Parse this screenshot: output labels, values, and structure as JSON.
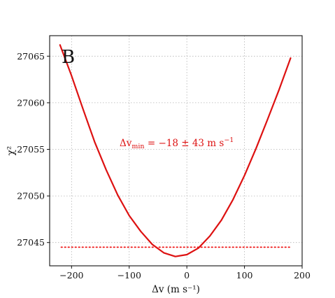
{
  "chart_data": {
    "type": "line",
    "panel_label": "B",
    "xlabel": "Δv (m s⁻¹)",
    "ylabel": "χ²",
    "xlim": [
      -238,
      200
    ],
    "ylim": [
      27042.5,
      27067.2
    ],
    "x_ticks": [
      -200,
      -100,
      0,
      100,
      200
    ],
    "y_ticks": [
      27045,
      27050,
      27055,
      27060,
      27065
    ],
    "x_tick_labels": [
      "−200",
      "−100",
      "0",
      "100",
      "200"
    ],
    "y_tick_labels": [
      "27045",
      "27050",
      "27055",
      "27060",
      "27065"
    ],
    "grid": true,
    "series": [
      {
        "style": "solid",
        "color": "#dd1111",
        "x": [
          -220,
          -200,
          -180,
          -160,
          -140,
          -120,
          -100,
          -80,
          -60,
          -40,
          -20,
          0,
          20,
          40,
          60,
          80,
          100,
          120,
          140,
          160,
          180
        ],
        "y": [
          27066.2,
          27062.9,
          27059.3,
          27055.8,
          27052.8,
          27050.1,
          27047.9,
          27046.2,
          27044.8,
          27043.9,
          27043.5,
          27043.7,
          27044.4,
          27045.7,
          27047.4,
          27049.6,
          27052.2,
          27055.1,
          27058.2,
          27061.4,
          27064.8
        ]
      },
      {
        "style": "dotted",
        "color": "#ee1111",
        "x": [
          -218,
          180
        ],
        "y": [
          27044.5,
          27044.5
        ]
      }
    ],
    "annotation": {
      "text": "Δvmin = −18 ± 43 m s−1",
      "base": "Δv",
      "subscript": "min",
      "rest": " = −18 ± 43 m s",
      "superscript": "−1",
      "color": "#dd1111"
    }
  }
}
